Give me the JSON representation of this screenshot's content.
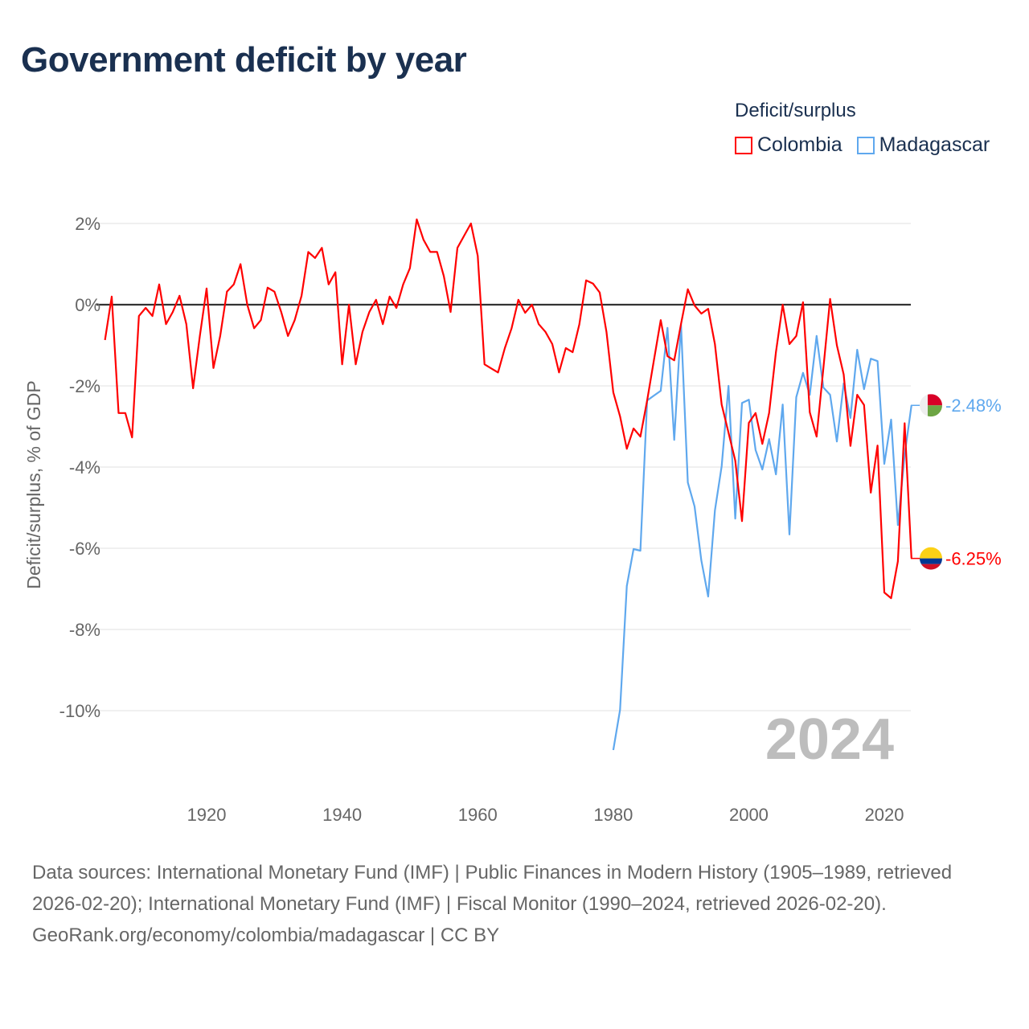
{
  "title": "Government deficit by year",
  "legend_title": "Deficit/surplus",
  "year_label": "2024",
  "footer": {
    "sources": "Data sources: International Monetary Fund (IMF) | Public Finances in Modern History (1905–1989, retrieved 2026-02-20); International Monetary Fund (IMF) | Fiscal Monitor (1990–2024, retrieved 2026-02-20).",
    "link": "GeoRank.org/economy/colombia/madagascar | CC BY"
  },
  "chart_data": {
    "type": "line",
    "title": "Government deficit by year",
    "xlabel": "",
    "ylabel": "Deficit/surplus, % of GDP",
    "xlim": [
      1905,
      2024
    ],
    "ylim": [
      -11.5,
      2.5
    ],
    "x_ticks": [
      1920,
      1940,
      1960,
      1980,
      2000,
      2020
    ],
    "y_ticks": [
      2,
      0,
      -2,
      -4,
      -6,
      -8,
      -10
    ],
    "y_tick_labels": [
      "2%",
      "0%",
      "-2%",
      "-4%",
      "-6%",
      "-8%",
      "-10%"
    ],
    "grid": true,
    "legend_position": "top-right",
    "series": [
      {
        "name": "Colombia",
        "color": "#ff0000",
        "start_year": 1905,
        "end_label": "-6.25%",
        "values": [
          -0.87,
          0.2,
          -2.67,
          -2.67,
          -3.27,
          -0.28,
          -0.08,
          -0.28,
          0.5,
          -0.48,
          -0.18,
          0.22,
          -0.48,
          -2.06,
          -0.77,
          0.4,
          -1.56,
          -0.77,
          0.32,
          0.5,
          1.0,
          0,
          -0.58,
          -0.38,
          0.42,
          0.32,
          -0.18,
          -0.77,
          -0.38,
          0.22,
          1.3,
          1.15,
          1.4,
          0.5,
          0.8,
          -1.47,
          0,
          -1.47,
          -0.67,
          -0.18,
          0.12,
          -0.48,
          0.2,
          -0.08,
          0.5,
          0.9,
          2.1,
          1.6,
          1.3,
          1.3,
          0.7,
          -0.18,
          1.4,
          1.7,
          2.0,
          1.2,
          -1.47,
          -1.57,
          -1.67,
          -1.07,
          -0.58,
          0.12,
          -0.2,
          0,
          -0.48,
          -0.67,
          -0.97,
          -1.67,
          -1.07,
          -1.17,
          -0.48,
          0.6,
          0.52,
          0.3,
          -0.67,
          -2.16,
          -2.75,
          -3.55,
          -3.05,
          -3.25,
          -2.36,
          -1.37,
          -0.38,
          -1.27,
          -1.37,
          -0.48,
          0.38,
          -0.02,
          -0.22,
          -0.1,
          -0.97,
          -2.46,
          -3.15,
          -3.84,
          -5.33,
          -2.91,
          -2.67,
          -3.43,
          -2.67,
          -1.17,
          0,
          -0.97,
          -0.77,
          0.06,
          -2.65,
          -3.25,
          -1.57,
          0.14,
          -1.0,
          -1.72,
          -3.48,
          -2.22,
          -2.47,
          -4.63,
          -3.47,
          -7.09,
          -7.23,
          -6.32,
          -2.92,
          -6.25
        ]
      },
      {
        "name": "Madagascar",
        "color": "#5fa8ee",
        "start_year": 1980,
        "end_label": "-2.48%",
        "values": [
          -10.97,
          -9.98,
          -6.93,
          -6.02,
          -6.06,
          -2.36,
          -2.24,
          -2.12,
          -0.57,
          -3.33,
          -0.48,
          -4.38,
          -4.97,
          -6.3,
          -7.19,
          -5.07,
          -3.98,
          -2.0,
          -5.27,
          -2.42,
          -2.34,
          -3.58,
          -4.06,
          -3.31,
          -4.18,
          -2.46,
          -5.66,
          -2.28,
          -1.68,
          -2.22,
          -0.77,
          -2.04,
          -2.22,
          -3.37,
          -1.94,
          -2.79,
          -1.11,
          -2.08,
          -1.33,
          -1.39,
          -3.92,
          -2.83,
          -5.43,
          -3.7,
          -2.48
        ]
      }
    ]
  }
}
